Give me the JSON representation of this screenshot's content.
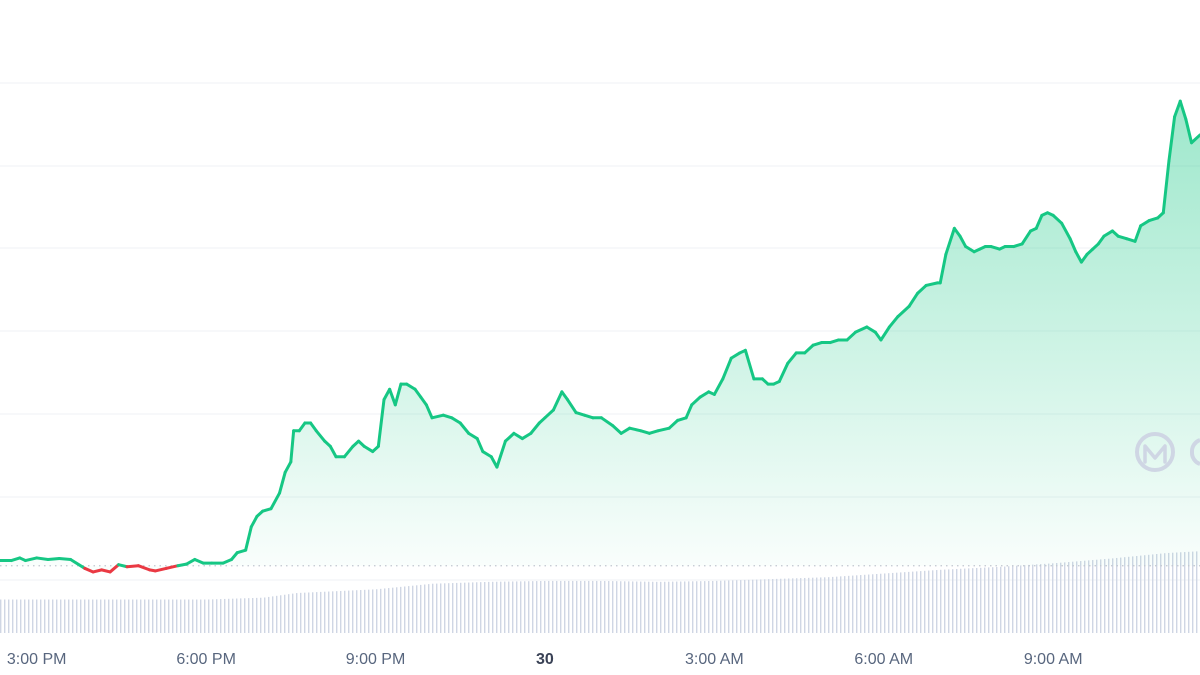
{
  "colors": {
    "line_up": "#16c784",
    "line_down": "#ea3943",
    "fill_top": "#16c784",
    "grid": "#eff2f5",
    "baseline_dots": "#c1c6d0",
    "volume": "#cfd6e4",
    "tick_text": "#58667e",
    "watermark": "#cfd6e4"
  },
  "icons": {
    "watermark": "coinmarketcap-logo-icon"
  },
  "chart_data": {
    "type": "area",
    "x_unit": "hours since 3:00 PM",
    "y_unit": "relative price",
    "xlim": [
      -0.65,
      20.6
    ],
    "ylim": [
      -1.2,
      10.9
    ],
    "baseline": 0,
    "grid": true,
    "x_ticks": [
      {
        "x": 0,
        "label": "3:00 PM",
        "bold": false
      },
      {
        "x": 3,
        "label": "6:00 PM",
        "bold": false
      },
      {
        "x": 6,
        "label": "9:00 PM",
        "bold": false
      },
      {
        "x": 9,
        "label": "30",
        "bold": true
      },
      {
        "x": 12,
        "label": "3:00 AM",
        "bold": false
      },
      {
        "x": 15,
        "label": "6:00 AM",
        "bold": false
      },
      {
        "x": 18,
        "label": "9:00 AM",
        "bold": false
      }
    ],
    "price": [
      [
        -0.65,
        0.1
      ],
      [
        -0.45,
        0.1
      ],
      [
        -0.3,
        0.15
      ],
      [
        -0.2,
        0.1
      ],
      [
        0.0,
        0.15
      ],
      [
        0.2,
        0.12
      ],
      [
        0.4,
        0.14
      ],
      [
        0.6,
        0.12
      ],
      [
        0.85,
        -0.05
      ],
      [
        1.0,
        -0.12
      ],
      [
        1.15,
        -0.08
      ],
      [
        1.3,
        -0.12
      ],
      [
        1.45,
        0.02
      ],
      [
        1.6,
        -0.02
      ],
      [
        1.8,
        0.0
      ],
      [
        2.0,
        -0.08
      ],
      [
        2.1,
        -0.1
      ],
      [
        2.3,
        -0.05
      ],
      [
        2.5,
        0.0
      ],
      [
        2.65,
        0.03
      ],
      [
        2.8,
        0.12
      ],
      [
        2.95,
        0.05
      ],
      [
        3.1,
        0.05
      ],
      [
        3.3,
        0.05
      ],
      [
        3.45,
        0.12
      ],
      [
        3.55,
        0.25
      ],
      [
        3.7,
        0.3
      ],
      [
        3.8,
        0.75
      ],
      [
        3.9,
        0.95
      ],
      [
        4.0,
        1.05
      ],
      [
        4.15,
        1.1
      ],
      [
        4.3,
        1.4
      ],
      [
        4.4,
        1.8
      ],
      [
        4.5,
        2.0
      ],
      [
        4.55,
        2.6
      ],
      [
        4.65,
        2.6
      ],
      [
        4.75,
        2.75
      ],
      [
        4.85,
        2.75
      ],
      [
        4.95,
        2.6
      ],
      [
        5.1,
        2.4
      ],
      [
        5.2,
        2.3
      ],
      [
        5.3,
        2.1
      ],
      [
        5.45,
        2.1
      ],
      [
        5.6,
        2.3
      ],
      [
        5.7,
        2.4
      ],
      [
        5.8,
        2.3
      ],
      [
        5.95,
        2.2
      ],
      [
        6.05,
        2.3
      ],
      [
        6.15,
        3.2
      ],
      [
        6.25,
        3.4
      ],
      [
        6.35,
        3.1
      ],
      [
        6.45,
        3.5
      ],
      [
        6.55,
        3.5
      ],
      [
        6.7,
        3.4
      ],
      [
        6.8,
        3.25
      ],
      [
        6.9,
        3.1
      ],
      [
        7.0,
        2.85
      ],
      [
        7.2,
        2.9
      ],
      [
        7.35,
        2.85
      ],
      [
        7.5,
        2.75
      ],
      [
        7.65,
        2.55
      ],
      [
        7.8,
        2.45
      ],
      [
        7.9,
        2.2
      ],
      [
        8.05,
        2.1
      ],
      [
        8.15,
        1.9
      ],
      [
        8.3,
        2.4
      ],
      [
        8.45,
        2.55
      ],
      [
        8.6,
        2.45
      ],
      [
        8.75,
        2.55
      ],
      [
        8.9,
        2.75
      ],
      [
        9.0,
        2.85
      ],
      [
        9.15,
        3.0
      ],
      [
        9.3,
        3.35
      ],
      [
        9.4,
        3.2
      ],
      [
        9.55,
        2.95
      ],
      [
        9.7,
        2.9
      ],
      [
        9.85,
        2.85
      ],
      [
        10.0,
        2.85
      ],
      [
        10.2,
        2.7
      ],
      [
        10.35,
        2.55
      ],
      [
        10.5,
        2.65
      ],
      [
        10.7,
        2.6
      ],
      [
        10.85,
        2.55
      ],
      [
        11.0,
        2.6
      ],
      [
        11.2,
        2.65
      ],
      [
        11.35,
        2.8
      ],
      [
        11.5,
        2.85
      ],
      [
        11.6,
        3.1
      ],
      [
        11.75,
        3.25
      ],
      [
        11.9,
        3.35
      ],
      [
        12.0,
        3.3
      ],
      [
        12.15,
        3.6
      ],
      [
        12.3,
        4.0
      ],
      [
        12.45,
        4.1
      ],
      [
        12.55,
        4.15
      ],
      [
        12.7,
        3.6
      ],
      [
        12.85,
        3.6
      ],
      [
        12.95,
        3.5
      ],
      [
        13.05,
        3.5
      ],
      [
        13.15,
        3.55
      ],
      [
        13.3,
        3.9
      ],
      [
        13.45,
        4.1
      ],
      [
        13.6,
        4.1
      ],
      [
        13.75,
        4.25
      ],
      [
        13.9,
        4.3
      ],
      [
        14.05,
        4.3
      ],
      [
        14.2,
        4.35
      ],
      [
        14.35,
        4.35
      ],
      [
        14.5,
        4.5
      ],
      [
        14.7,
        4.6
      ],
      [
        14.85,
        4.5
      ],
      [
        14.95,
        4.35
      ],
      [
        15.1,
        4.6
      ],
      [
        15.25,
        4.8
      ],
      [
        15.45,
        5.0
      ],
      [
        15.6,
        5.25
      ],
      [
        15.75,
        5.4
      ],
      [
        15.95,
        5.45
      ],
      [
        16.0,
        5.45
      ],
      [
        16.1,
        6.0
      ],
      [
        16.25,
        6.5
      ],
      [
        16.35,
        6.35
      ],
      [
        16.45,
        6.15
      ],
      [
        16.6,
        6.05
      ],
      [
        16.7,
        6.1
      ],
      [
        16.8,
        6.15
      ],
      [
        16.9,
        6.15
      ],
      [
        17.05,
        6.1
      ],
      [
        17.15,
        6.15
      ],
      [
        17.3,
        6.15
      ],
      [
        17.45,
        6.2
      ],
      [
        17.6,
        6.45
      ],
      [
        17.7,
        6.5
      ],
      [
        17.8,
        6.75
      ],
      [
        17.9,
        6.8
      ],
      [
        18.0,
        6.75
      ],
      [
        18.15,
        6.6
      ],
      [
        18.3,
        6.3
      ],
      [
        18.4,
        6.05
      ],
      [
        18.5,
        5.85
      ],
      [
        18.6,
        6.0
      ],
      [
        18.7,
        6.1
      ],
      [
        18.8,
        6.2
      ],
      [
        18.9,
        6.35
      ],
      [
        19.05,
        6.45
      ],
      [
        19.15,
        6.35
      ],
      [
        19.3,
        6.3
      ],
      [
        19.45,
        6.25
      ],
      [
        19.55,
        6.55
      ],
      [
        19.7,
        6.65
      ],
      [
        19.85,
        6.7
      ],
      [
        19.95,
        6.8
      ],
      [
        20.05,
        7.8
      ],
      [
        20.15,
        8.65
      ],
      [
        20.25,
        8.95
      ],
      [
        20.35,
        8.6
      ],
      [
        20.45,
        8.15
      ],
      [
        20.6,
        8.3
      ]
    ],
    "volume_range": [
      0,
      100
    ],
    "volume": [
      [
        -0.65,
        36
      ],
      [
        0.0,
        36
      ],
      [
        3.0,
        36
      ],
      [
        4.0,
        38
      ],
      [
        4.6,
        43
      ],
      [
        6.0,
        47
      ],
      [
        7.0,
        53
      ],
      [
        8.0,
        55
      ],
      [
        9.0,
        56
      ],
      [
        10.0,
        56
      ],
      [
        11.0,
        55
      ],
      [
        12.0,
        56
      ],
      [
        13.0,
        58
      ],
      [
        14.0,
        60
      ],
      [
        15.0,
        64
      ],
      [
        16.0,
        68
      ],
      [
        17.0,
        71
      ],
      [
        18.0,
        75
      ],
      [
        19.0,
        80
      ],
      [
        20.0,
        86
      ],
      [
        20.6,
        88
      ]
    ]
  }
}
